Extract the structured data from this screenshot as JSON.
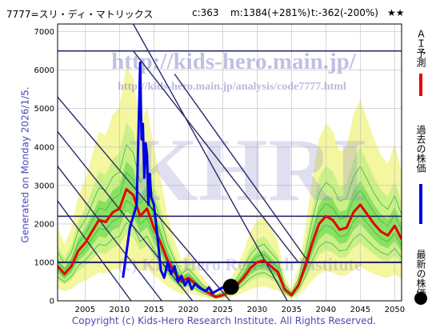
{
  "header": {
    "code_name": "7777=スリ・ディ・マトリックス",
    "current": "c:363",
    "max": "m:1384(+281%)",
    "target": "t:-362(-200%)",
    "stars": "★★"
  },
  "side_note": "Generated on Monday 2026/1/5.",
  "watermark": {
    "site": "http://kids-hero.main.jp/",
    "url": "http://kids-hero.main.jp/analysis/code7777.html",
    "big": "KHRI",
    "copy": "(c) Kids-Hero Research Institute"
  },
  "legend": {
    "ai": "ＡＩ予測",
    "past": "過去の株価",
    "latest": "最新の株価"
  },
  "footer": "Copyright (c) Kids-Hero Research Institute. All Rights Reserved.",
  "colors": {
    "ai": "#e60000",
    "past": "#0000e6",
    "band_light": "#f4f6a0",
    "band_mid": "#ccf088",
    "band_green": "#8ae060",
    "channel": "#2a2a6a",
    "accent_text": "#4a4ab4"
  },
  "chart_data": {
    "type": "line",
    "xlim": [
      2001,
      2051
    ],
    "ylim": [
      0,
      7200
    ],
    "x_ticks": [
      "2005",
      "2010",
      "2015",
      "2020",
      "2025",
      "2030",
      "2035",
      "2040",
      "2045",
      "2050"
    ],
    "y_ticks": [
      "0",
      "1000",
      "2000",
      "3000",
      "4000",
      "5000",
      "6000",
      "7000"
    ],
    "grid": true,
    "horizontal_levels": [
      1000,
      2200,
      6500
    ],
    "diagonal_channels": [
      [
        [
          2001,
          5300
        ],
        [
          2027,
          -200
        ]
      ],
      [
        [
          2001,
          4400
        ],
        [
          2021.5,
          -200
        ]
      ],
      [
        [
          2001,
          3500
        ],
        [
          2017,
          -200
        ]
      ],
      [
        [
          2001,
          2600
        ],
        [
          2012.5,
          -200
        ]
      ],
      [
        [
          2012,
          7200
        ],
        [
          2035,
          -200
        ]
      ],
      [
        [
          2012,
          6500
        ],
        [
          2036,
          1000
        ]
      ],
      [
        [
          2018,
          5900
        ],
        [
          2037.5,
          1000
        ]
      ]
    ],
    "latest_point": {
      "x": 2026.2,
      "y": 363
    },
    "series": [
      {
        "name": "ＡＩ予測",
        "x": [
          2001,
          2002,
          2003,
          2004,
          2005,
          2006,
          2007,
          2008,
          2009,
          2010,
          2011,
          2012,
          2013,
          2014,
          2015,
          2016,
          2017,
          2018,
          2019,
          2020,
          2021,
          2022,
          2023,
          2024,
          2025,
          2026,
          2027,
          2028,
          2029,
          2030,
          2031,
          2032,
          2033,
          2034,
          2035,
          2036,
          2037,
          2038,
          2039,
          2040,
          2041,
          2042,
          2043,
          2044,
          2045,
          2046,
          2047,
          2048,
          2049,
          2050,
          2051
        ],
        "values": [
          900,
          700,
          900,
          1300,
          1500,
          1800,
          2100,
          2050,
          2300,
          2400,
          2900,
          2750,
          2200,
          2400,
          1900,
          1500,
          1050,
          750,
          500,
          600,
          450,
          300,
          200,
          100,
          150,
          250,
          400,
          600,
          850,
          1000,
          1050,
          900,
          750,
          300,
          150,
          400,
          900,
          1500,
          2000,
          2200,
          2100,
          1850,
          1900,
          2300,
          2500,
          2250,
          2000,
          1800,
          1700,
          1950,
          1600
        ]
      },
      {
        "name": "過去の株価",
        "x": [
          2010.5,
          2011.5,
          2012.5,
          2013,
          2013.2,
          2013.4,
          2013.6,
          2013.8,
          2014,
          2014.2,
          2014.4,
          2014.6,
          2015,
          2015.5,
          2016,
          2016.5,
          2017,
          2017.5,
          2018,
          2018.5,
          2019,
          2019.5,
          2020,
          2020.5,
          2021,
          2021.5,
          2022,
          2022.5,
          2023,
          2023.5,
          2024,
          2024.5,
          2025,
          2025.5,
          2026.2
        ],
        "values": [
          600,
          1900,
          2500,
          6200,
          4200,
          4600,
          3200,
          4100,
          3800,
          2500,
          3300,
          2700,
          2500,
          1700,
          800,
          600,
          1000,
          700,
          900,
          500,
          650,
          400,
          550,
          300,
          450,
          350,
          300,
          250,
          350,
          200,
          250,
          300,
          350,
          300,
          363
        ]
      }
    ]
  }
}
